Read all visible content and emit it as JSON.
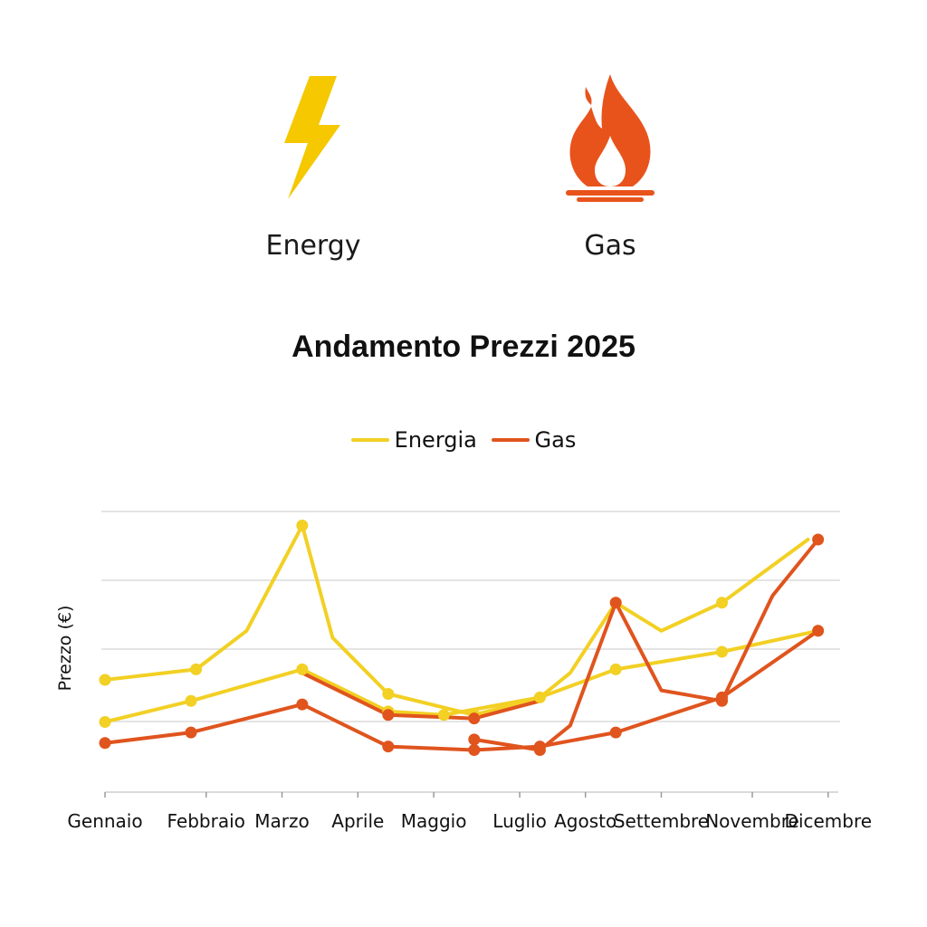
{
  "icons": {
    "energy": {
      "icon": "lightning-bolt-icon",
      "label": "Energy",
      "color": "#F5C800"
    },
    "gas": {
      "icon": "flame-icon",
      "label": "Gas",
      "color": "#E8531C"
    }
  },
  "chart_data": {
    "type": "line",
    "title": "Andamento Prezzi 2025",
    "xlabel": "",
    "ylabel": "Prezzo (€)",
    "categories": [
      "Gennaio",
      "Febbraio",
      "Marzo",
      "Aprile",
      "Maggio",
      "Luglio",
      "Agosto",
      "Settembre",
      "Novembre",
      "Dicembre"
    ],
    "x_ticks": [
      0,
      2,
      3.5,
      5,
      6.5,
      8.2,
      9.5,
      11,
      12.8,
      14.3
    ],
    "xlim": [
      0,
      14.5
    ],
    "ylim": [
      0,
      4
    ],
    "grid": "horizontal",
    "legend_position": "top-center",
    "legend": [
      {
        "name": "Energia",
        "color": "#F2D024"
      },
      {
        "name": "Gas",
        "color": "#E0541E"
      }
    ],
    "series": [
      {
        "name": "Energia",
        "color": "#F2D024",
        "points": [
          [
            0,
            1.6
          ],
          [
            1.8,
            1.75
          ],
          [
            2.8,
            2.3
          ],
          [
            3.9,
            3.8
          ],
          [
            4.5,
            2.2
          ],
          [
            5.6,
            1.4
          ],
          [
            7.3,
            1.1
          ],
          [
            8.6,
            1.35
          ],
          [
            9.2,
            1.7
          ],
          [
            10.1,
            2.7
          ],
          [
            11,
            2.3
          ],
          [
            12.2,
            2.7
          ],
          [
            13.9,
            3.6
          ]
        ],
        "markers": [
          [
            0,
            1.6
          ],
          [
            1.8,
            1.75
          ],
          [
            3.9,
            3.8
          ],
          [
            5.6,
            1.4
          ],
          [
            7.3,
            1.1
          ],
          [
            10.1,
            2.7
          ],
          [
            12.2,
            2.7
          ]
        ]
      },
      {
        "name": "Energia",
        "color": "#F2D024",
        "points": [
          [
            0,
            1
          ],
          [
            1.7,
            1.3
          ],
          [
            3.9,
            1.75
          ],
          [
            5.6,
            1.15
          ],
          [
            6.7,
            1.1
          ],
          [
            8.6,
            1.35
          ],
          [
            10.1,
            1.75
          ],
          [
            12.2,
            2.0
          ],
          [
            14.1,
            2.3
          ]
        ],
        "markers": [
          [
            0,
            1
          ],
          [
            1.7,
            1.3
          ],
          [
            3.9,
            1.75
          ],
          [
            5.6,
            1.15
          ],
          [
            6.7,
            1.1
          ],
          [
            8.6,
            1.35
          ],
          [
            10.1,
            1.75
          ],
          [
            12.2,
            2.0
          ],
          [
            14.1,
            2.3
          ]
        ]
      },
      {
        "name": "Gas",
        "color": "#E0541E",
        "points": [
          [
            0,
            0.7
          ],
          [
            1.7,
            0.85
          ],
          [
            3.9,
            1.25
          ],
          [
            5.6,
            0.65
          ],
          [
            7.3,
            0.6
          ],
          [
            8.6,
            0.65
          ],
          [
            10.1,
            0.85
          ],
          [
            12.2,
            1.35
          ],
          [
            14.1,
            2.3
          ]
        ],
        "markers": [
          [
            0,
            0.7
          ],
          [
            1.7,
            0.85
          ],
          [
            3.9,
            1.25
          ],
          [
            5.6,
            0.65
          ],
          [
            7.3,
            0.6
          ],
          [
            8.6,
            0.65
          ],
          [
            10.1,
            0.85
          ],
          [
            12.2,
            1.35
          ],
          [
            14.1,
            2.3
          ]
        ]
      },
      {
        "name": "Gas",
        "color": "#E0541E",
        "points": [
          [
            3.9,
            1.7
          ],
          [
            5.6,
            1.1
          ],
          [
            7.3,
            1.05
          ],
          [
            8.6,
            1.3
          ]
        ],
        "markers": [
          [
            5.6,
            1.1
          ],
          [
            7.3,
            1.05
          ]
        ]
      },
      {
        "name": "Gas",
        "color": "#E0541E",
        "points": [
          [
            7.3,
            0.75
          ],
          [
            8.6,
            0.6
          ],
          [
            9.2,
            0.95
          ],
          [
            10.1,
            2.7
          ],
          [
            11,
            1.45
          ],
          [
            12.2,
            1.3
          ],
          [
            13.2,
            2.8
          ],
          [
            14.1,
            3.6
          ]
        ],
        "markers": [
          [
            7.3,
            0.75
          ],
          [
            8.6,
            0.6
          ],
          [
            10.1,
            2.7
          ],
          [
            12.2,
            1.3
          ],
          [
            14.1,
            3.6
          ]
        ]
      }
    ]
  }
}
